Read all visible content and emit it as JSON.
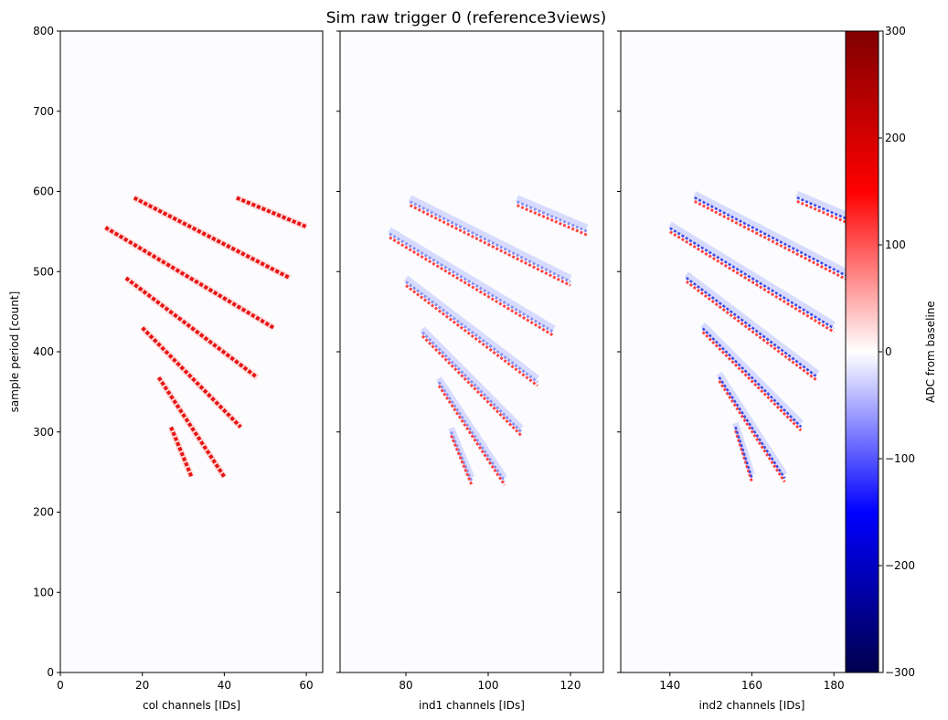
{
  "chart_data": {
    "type": "heatmap",
    "title": "Sim raw trigger 0 (reference3views)",
    "ylabel": "sample period [count]",
    "ylim": [
      0,
      800
    ],
    "yticks": [
      0,
      100,
      200,
      300,
      400,
      500,
      600,
      700,
      800
    ],
    "panels": [
      {
        "name": "col",
        "xlabel": "col channels [IDs]",
        "xlim": [
          0,
          64
        ],
        "xticks": [
          0,
          20,
          40,
          60
        ],
        "bipolar": false,
        "tracks": [
          {
            "x": [
              18,
              56
            ],
            "y": [
              592,
              492
            ]
          },
          {
            "x": [
              43,
              60
            ],
            "y": [
              592,
              556
            ]
          },
          {
            "x": [
              11,
              52
            ],
            "y": [
              555,
              430
            ]
          },
          {
            "x": [
              16,
              48
            ],
            "y": [
              492,
              368
            ]
          },
          {
            "x": [
              20,
              44
            ],
            "y": [
              430,
              306
            ]
          },
          {
            "x": [
              24,
              40
            ],
            "y": [
              368,
              244
            ]
          },
          {
            "x": [
              27,
              32
            ],
            "y": [
              306,
              244
            ]
          }
        ]
      },
      {
        "name": "ind1",
        "xlabel": "ind1 channels [IDs]",
        "xlim": [
          64,
          128
        ],
        "xticks": [
          80,
          100,
          120
        ],
        "bipolar": true,
        "tracks": [
          {
            "x": [
              81,
              120
            ],
            "y": [
              585,
              485
            ]
          },
          {
            "x": [
              107,
              124
            ],
            "y": [
              585,
              548
            ]
          },
          {
            "x": [
              76,
              116
            ],
            "y": [
              545,
              422
            ]
          },
          {
            "x": [
              80,
              112
            ],
            "y": [
              485,
              360
            ]
          },
          {
            "x": [
              84,
              108
            ],
            "y": [
              422,
              298
            ]
          },
          {
            "x": [
              88,
              104
            ],
            "y": [
              360,
              236
            ]
          },
          {
            "x": [
              91,
              96
            ],
            "y": [
              298,
              236
            ]
          }
        ]
      },
      {
        "name": "ind2",
        "xlabel": "ind2 channels [IDs]",
        "xlim": [
          128,
          192
        ],
        "xticks": [
          140,
          160,
          180
        ],
        "bipolar": true,
        "tracks": [
          {
            "x": [
              146,
              184
            ],
            "y": [
              590,
              490
            ]
          },
          {
            "x": [
              171,
              188
            ],
            "y": [
              590,
              553
            ]
          },
          {
            "x": [
              140,
              180
            ],
            "y": [
              552,
              427
            ]
          },
          {
            "x": [
              144,
              176
            ],
            "y": [
              490,
              366
            ]
          },
          {
            "x": [
              148,
              172
            ],
            "y": [
              427,
              304
            ]
          },
          {
            "x": [
              152,
              168
            ],
            "y": [
              366,
              240
            ]
          },
          {
            "x": [
              156,
              160
            ],
            "y": [
              304,
              240
            ]
          }
        ]
      }
    ],
    "colorbar": {
      "label": "ADC from baseline",
      "range": [
        -300,
        300
      ],
      "ticks": [
        -300,
        -200,
        -100,
        0,
        100,
        200,
        300
      ],
      "colormap": "seismic",
      "stops": [
        "#00004d",
        "#0000ff",
        "#ffffff",
        "#ff0000",
        "#800000"
      ]
    }
  }
}
